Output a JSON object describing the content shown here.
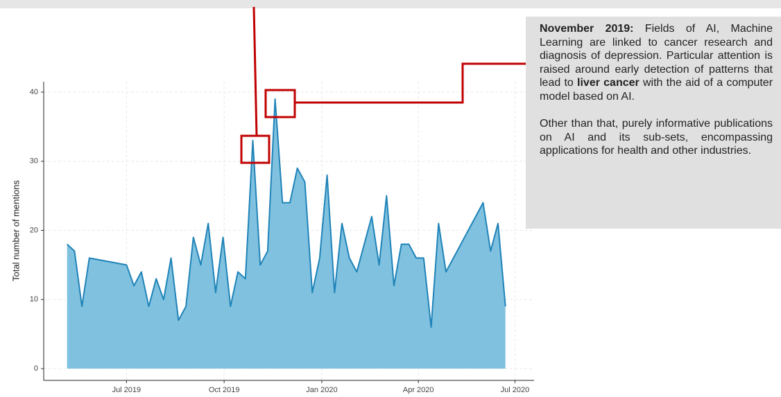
{
  "chart_data": {
    "type": "area",
    "y_label": "Total number of mentions",
    "x": [
      "2019-05-06",
      "2019-05-13",
      "2019-05-20",
      "2019-05-27",
      "2019-07-01",
      "2019-07-08",
      "2019-07-15",
      "2019-07-22",
      "2019-07-29",
      "2019-08-05",
      "2019-08-12",
      "2019-08-19",
      "2019-08-26",
      "2019-09-02",
      "2019-09-09",
      "2019-09-16",
      "2019-09-23",
      "2019-09-30",
      "2019-10-07",
      "2019-10-14",
      "2019-10-21",
      "2019-10-28",
      "2019-11-04",
      "2019-11-11",
      "2019-11-18",
      "2019-11-25",
      "2019-12-02",
      "2019-12-09",
      "2019-12-16",
      "2019-12-23",
      "2019-12-30",
      "2020-01-06",
      "2020-01-13",
      "2020-01-20",
      "2020-01-27",
      "2020-02-03",
      "2020-02-17",
      "2020-02-24",
      "2020-03-02",
      "2020-03-09",
      "2020-03-16",
      "2020-03-23",
      "2020-03-30",
      "2020-04-06",
      "2020-04-13",
      "2020-04-20",
      "2020-04-27",
      "2020-06-01",
      "2020-06-08",
      "2020-06-15",
      "2020-06-22"
    ],
    "values": [
      18,
      17,
      9,
      16,
      15,
      12,
      14,
      9,
      13,
      10,
      16,
      7,
      9,
      19,
      15,
      21,
      11,
      19,
      9,
      14,
      13,
      33,
      15,
      17,
      39,
      24,
      24,
      29,
      27,
      11,
      16,
      28,
      11,
      21,
      16,
      14,
      22,
      15,
      25,
      12,
      18,
      18,
      16,
      16,
      6,
      21,
      14,
      24,
      17,
      21,
      9
    ],
    "color": "#7fc1de",
    "line_color": "#1f83b8",
    "xlim": [
      "2019-04-14",
      "2020-07-19"
    ],
    "xticks": [
      {
        "value": "2019-07-01",
        "label": "Jul 2019"
      },
      {
        "value": "2019-10-01",
        "label": "Oct 2019"
      },
      {
        "value": "2020-01-01",
        "label": "Jan 2020"
      },
      {
        "value": "2020-04-01",
        "label": "Apr 2020"
      },
      {
        "value": "2020-07-01",
        "label": "Jul 2020"
      }
    ],
    "ylim": [
      -1.7,
      41.5
    ],
    "yticks": [
      0,
      10,
      20,
      30,
      40
    ],
    "grid": true
  },
  "annotation": {
    "paragraphs": [
      [
        {
          "text": "November 2019:",
          "bold": true
        },
        {
          "text": " Fields of AI, Machine Learning are linked to cancer research and diagnosis of depression. Particular attention is raised around early detection of patterns that lead to ",
          "bold": false
        },
        {
          "text": "liver cancer",
          "bold": true
        },
        {
          "text": " with the aid of a computer model based on AI.",
          "bold": false
        }
      ],
      [
        {
          "text": "Other than that, purely informative publications on AI and its sub-sets, encompassing applications for health and other industries.",
          "bold": false
        }
      ]
    ]
  }
}
